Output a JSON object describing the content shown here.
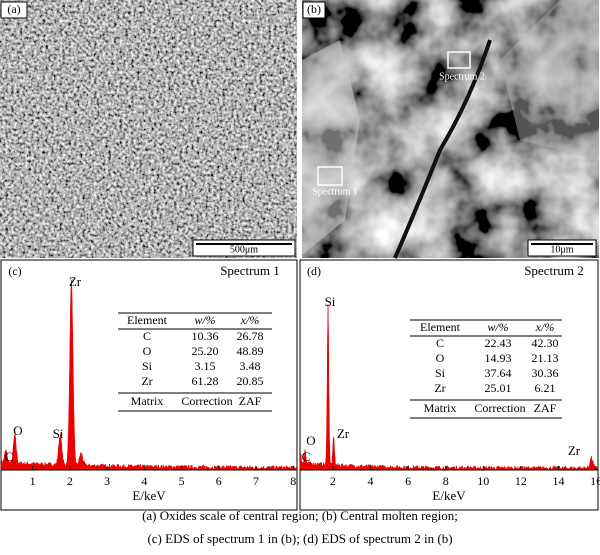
{
  "panels": {
    "a": {
      "label": "(a)",
      "scale_bar": "500μm"
    },
    "b": {
      "label": "(b)",
      "scale_bar": "10μm",
      "regions": [
        "Spectrum 1",
        "Spectrum 2"
      ]
    }
  },
  "spectra": [
    {
      "label": "(c)",
      "title": "Spectrum 1",
      "peaks": [
        "C",
        "O",
        "Si",
        "Zr"
      ],
      "xlim": [
        0.15,
        8.1
      ],
      "xticks": [
        1,
        2,
        3,
        4,
        5,
        6,
        7,
        8
      ],
      "xlabel": "E/keV",
      "table": {
        "header": [
          "Element",
          "w/%",
          "x/%"
        ],
        "rows": [
          [
            "C",
            "10.36",
            "26.78"
          ],
          [
            "O",
            "25.20",
            "48.89"
          ],
          [
            "Si",
            "3.15",
            "3.48"
          ],
          [
            "Zr",
            "61.28",
            "20.85"
          ]
        ],
        "footer": [
          "Matrix",
          "Correction",
          "ZAF"
        ]
      }
    },
    {
      "label": "(d)",
      "title": "Spectrum 2",
      "peaks": [
        "O",
        "C",
        "Si",
        "Zr",
        "Zr"
      ],
      "xlim": [
        0.25,
        16.1
      ],
      "xticks": [
        2,
        4,
        6,
        8,
        10,
        12,
        14,
        16
      ],
      "xlabel": "E/keV",
      "table": {
        "header": [
          "Element",
          "w/%",
          "x/%"
        ],
        "rows": [
          [
            "C",
            "22.43",
            "42.30"
          ],
          [
            "O",
            "14.93",
            "21.13"
          ],
          [
            "Si",
            "37.64",
            "30.36"
          ],
          [
            "Zr",
            "25.01",
            "6.21"
          ]
        ],
        "footer": [
          "Matrix",
          "Correction",
          "ZAF"
        ]
      }
    }
  ],
  "caption": [
    "(a) Oxides scale of central region; (b) Central molten region;",
    "(c) EDS of spectrum 1 in (b); (d) EDS of spectrum 2 in (b)"
  ]
}
